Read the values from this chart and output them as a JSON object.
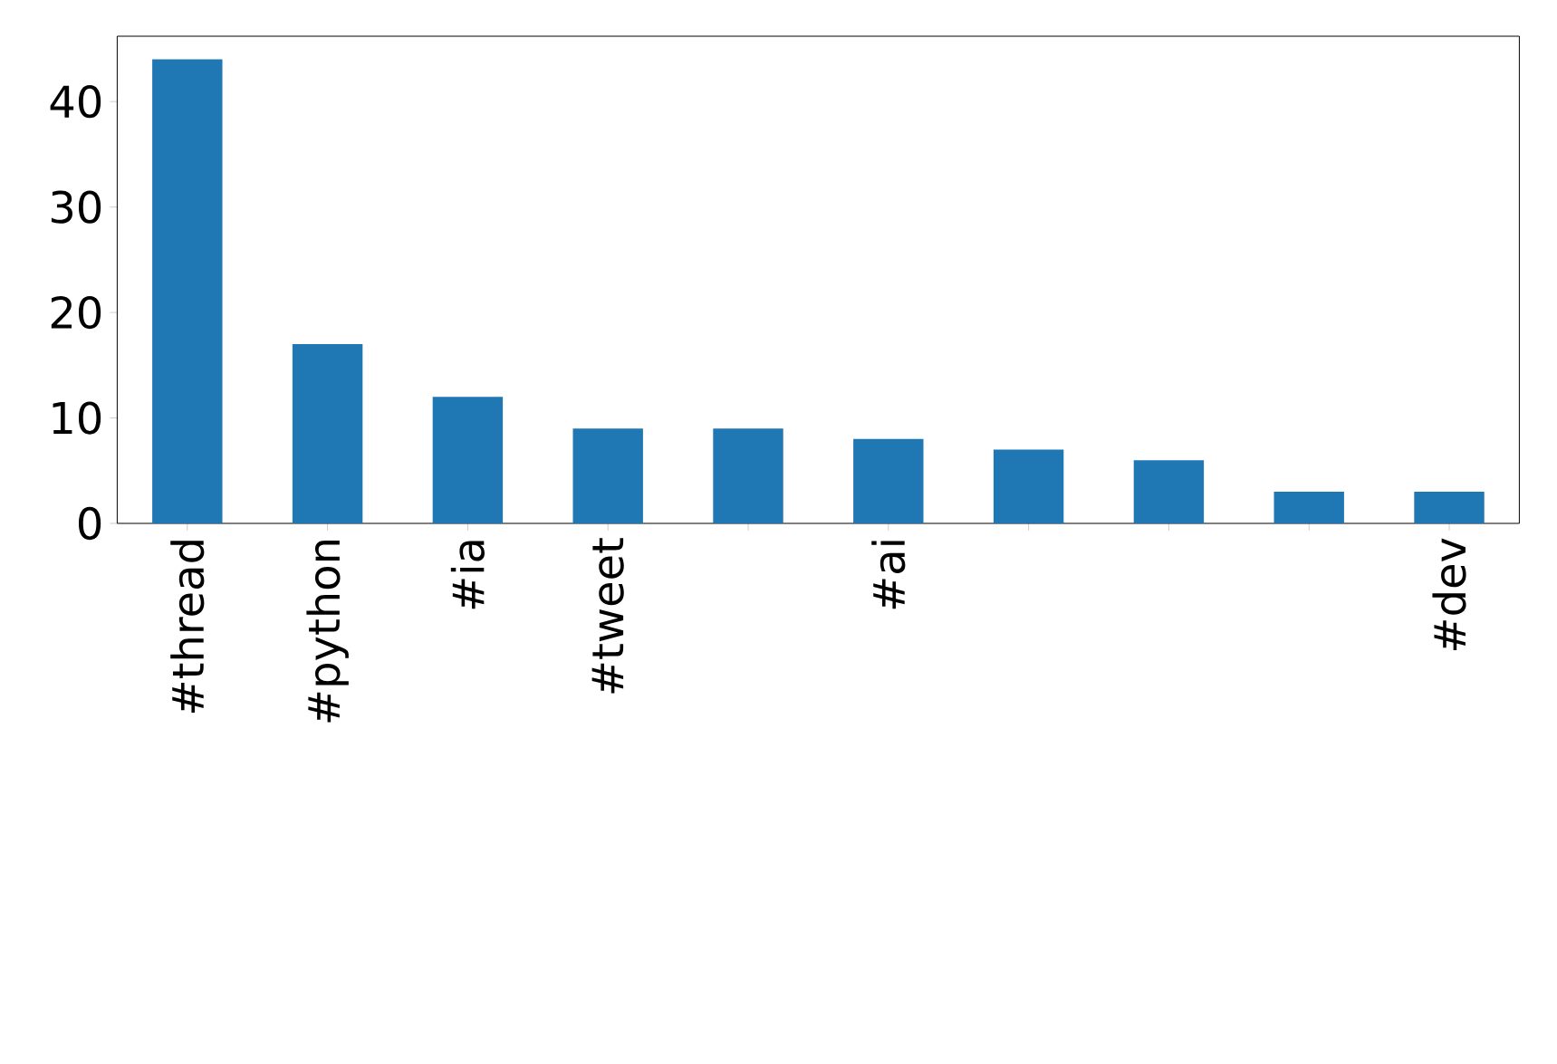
{
  "chart_data": {
    "type": "bar",
    "categories": [
      "#thread",
      "#python",
      "#ia",
      "#tweet",
      null,
      "#ai",
      null,
      null,
      null,
      "#dev"
    ],
    "values": [
      44,
      17,
      12,
      9,
      9,
      8,
      7,
      6,
      3,
      3
    ],
    "color": "#1f77b4",
    "ylim": [
      0,
      46.2
    ],
    "yticks": [
      0,
      10,
      20,
      30,
      40
    ]
  }
}
